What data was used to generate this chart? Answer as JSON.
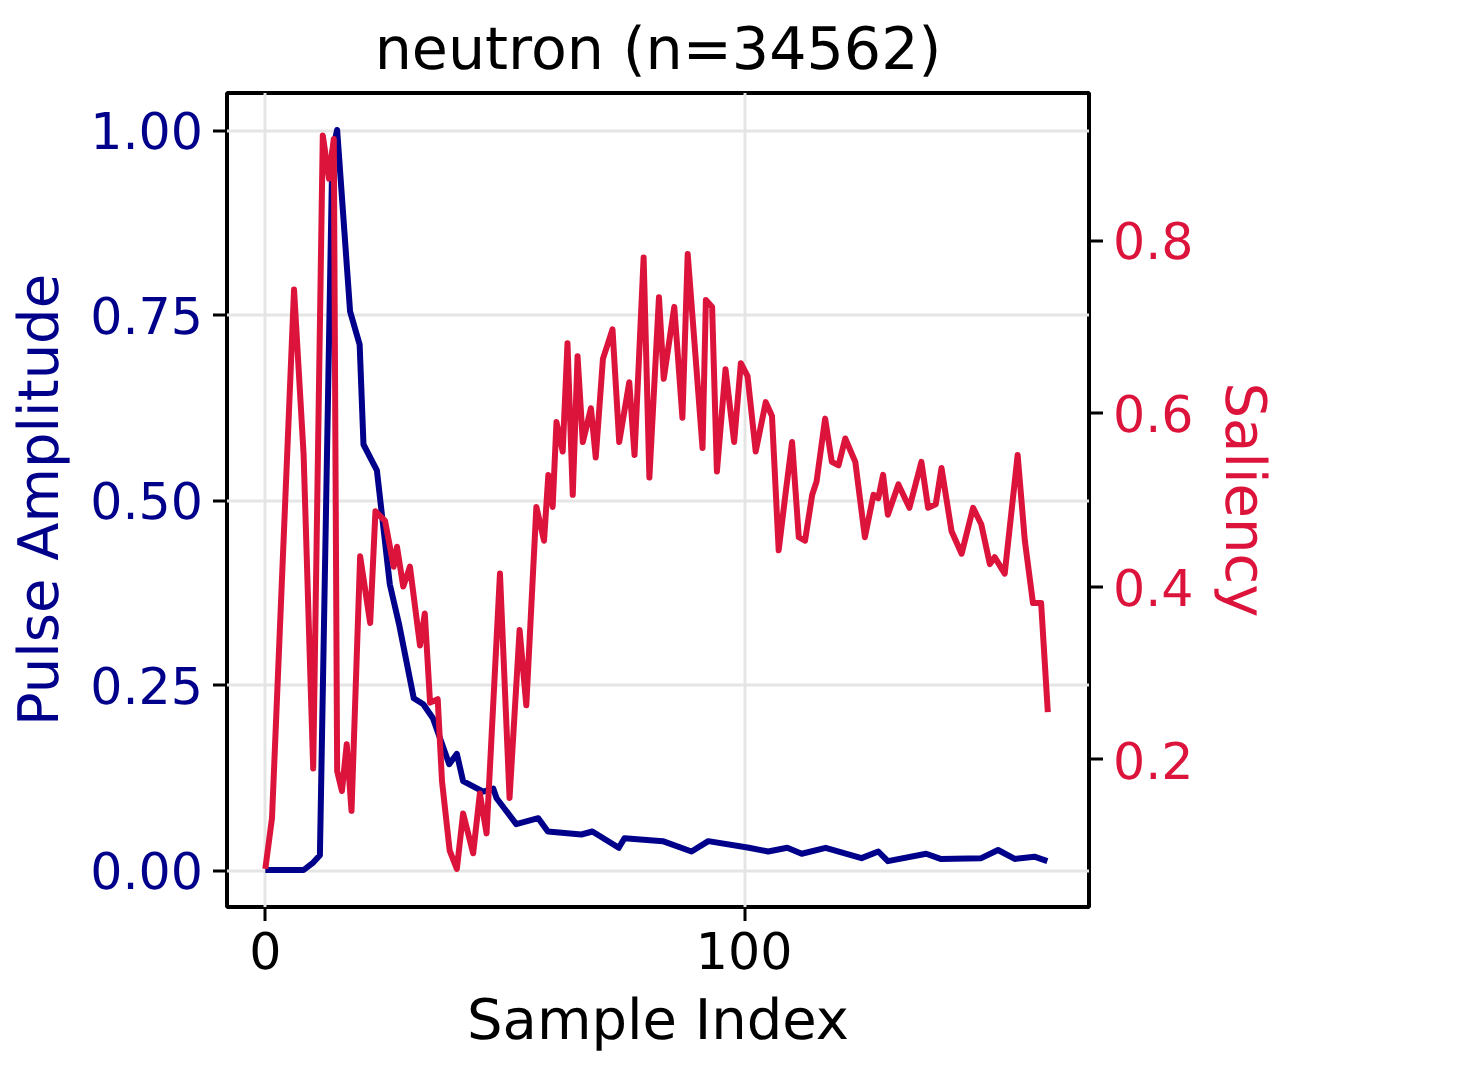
{
  "chart_data": {
    "type": "line",
    "title": "neutron (n=34562)",
    "xlabel": "Sample Index",
    "ylabel": "Pulse Amplitude",
    "y2label": "Saliency",
    "xlim": [
      -8,
      172
    ],
    "xticks": [
      0,
      100
    ],
    "ylim": [
      -0.05,
      1.05
    ],
    "yticks": [
      {
        "value": 0,
        "label": "0.00"
      },
      {
        "value": 0.25,
        "label": "0.25"
      },
      {
        "value": 0.5,
        "label": "0.50"
      },
      {
        "value": 0.75,
        "label": "0.75"
      },
      {
        "value": 1,
        "label": "1.00"
      }
    ],
    "y2lim": [
      0.03,
      0.97
    ],
    "y2ticks": [
      0.2,
      0.4,
      0.6,
      0.8
    ],
    "grid": true,
    "line_style": "solid",
    "series": [
      {
        "color": "#00008b",
        "x": [
          0,
          8,
          10,
          11.4,
          14,
          15,
          17.7,
          19.7,
          20.5,
          23.3,
          26,
          28,
          31,
          33,
          35,
          38.4,
          40,
          41.3,
          45.5,
          47.6,
          48.3,
          52.4,
          57,
          59,
          66,
          68.3,
          73.8,
          75,
          83,
          89,
          92.5,
          101,
          105,
          109,
          112,
          117,
          124.5,
          128,
          130,
          138,
          141,
          149.5,
          153,
          156.5,
          160.6,
          163.3
        ],
        "values": [
          0,
          0,
          0.01,
          0.02,
          0.97,
          1.0,
          0.755,
          0.71,
          0.575,
          0.54,
          0.386,
          0.33,
          0.232,
          0.224,
          0.205,
          0.143,
          0.157,
          0.12,
          0.106,
          0.11,
          0.097,
          0.062,
          0.07,
          0.052,
          0.048,
          0.052,
          0.03,
          0.043,
          0.039,
          0.025,
          0.039,
          0.03,
          0.025,
          0.03,
          0.022,
          0.03,
          0.016,
          0.025,
          0.012,
          0.022,
          0.015,
          0.016,
          0.027,
          0.015,
          0.018,
          0.012
        ]
      },
      {
        "color": "#dc143c",
        "axis": "y2",
        "x": [
          0,
          1.4,
          6,
          8,
          10,
          12,
          13.3,
          14.3,
          15,
          16,
          17,
          18,
          19.8,
          21.9,
          23,
          25,
          26.8,
          27.5,
          28.8,
          30.2,
          32.3,
          33.3,
          34.4,
          36,
          36.9,
          38.5,
          40,
          41.3,
          43.4,
          44.8,
          46.2,
          49,
          51,
          53.1,
          54.5,
          56.6,
          58.2,
          59.1,
          60,
          60.8,
          62.1,
          63.1,
          64.2,
          65.2,
          66.3,
          68,
          69,
          70.5,
          72.5,
          73.9,
          76,
          77.1,
          79,
          80.2,
          82.2,
          83.2,
          85.4,
          87.1,
          88.2,
          91.3,
          92,
          93.3,
          94.3,
          96.1,
          97.9,
          99.3,
          100.7,
          102.4,
          104.5,
          105.8,
          107.2,
          108.6,
          110,
          111.4,
          112.7,
          114.2,
          115.1,
          116.9,
          118.3,
          119.7,
          121.1,
          123.2,
          125.2,
          127,
          128,
          129,
          130,
          132.2,
          134.5,
          137,
          138.4,
          140,
          141.2,
          143.3,
          145.4,
          147.8,
          149.5,
          151.3,
          152.3,
          154.4,
          157.1,
          158.6,
          160.3,
          162,
          163.4
        ],
        "values": [
          0.074,
          0.133,
          0.743,
          0.552,
          0.19,
          0.921,
          0.871,
          0.917,
          0.187,
          0.164,
          0.218,
          0.141,
          0.435,
          0.358,
          0.487,
          0.476,
          0.423,
          0.446,
          0.4,
          0.423,
          0.332,
          0.369,
          0.266,
          0.27,
          0.175,
          0.095,
          0.074,
          0.138,
          0.092,
          0.161,
          0.115,
          0.415,
          0.156,
          0.35,
          0.263,
          0.492,
          0.453,
          0.529,
          0.492,
          0.59,
          0.556,
          0.681,
          0.506,
          0.666,
          0.567,
          0.606,
          0.549,
          0.663,
          0.697,
          0.567,
          0.636,
          0.552,
          0.78,
          0.526,
          0.734,
          0.64,
          0.723,
          0.595,
          0.784,
          0.56,
          0.731,
          0.723,
          0.533,
          0.651,
          0.567,
          0.658,
          0.643,
          0.556,
          0.613,
          0.597,
          0.442,
          0.506,
          0.567,
          0.457,
          0.453,
          0.506,
          0.521,
          0.594,
          0.544,
          0.54,
          0.571,
          0.544,
          0.457,
          0.506,
          0.502,
          0.529,
          0.483,
          0.518,
          0.491,
          0.544,
          0.491,
          0.495,
          0.537,
          0.464,
          0.438,
          0.491,
          0.472,
          0.426,
          0.434,
          0.415,
          0.552,
          0.453,
          0.381,
          0.381,
          0.255
        ]
      }
    ]
  }
}
